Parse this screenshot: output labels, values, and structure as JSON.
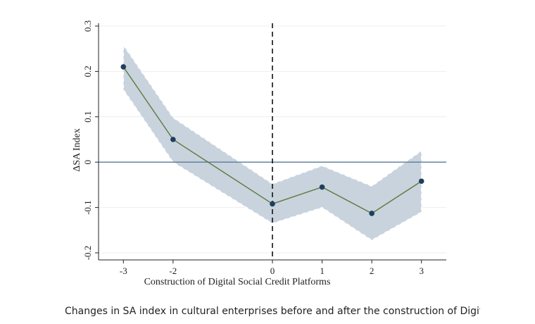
{
  "chart_data": {
    "type": "line",
    "title": "",
    "xlabel": "Construction of Digital Social Credit Platforms",
    "ylabel": "ΔSA Index",
    "x": [
      -3,
      -2,
      0,
      1,
      2,
      3
    ],
    "xticks": [
      "-3",
      "-2",
      "0",
      "1",
      "2",
      "3"
    ],
    "yticks": [
      "-0.2",
      "-0.1",
      "0",
      "0.1",
      "0.2",
      "0.3"
    ],
    "xlim": [
      -3.5,
      3.5
    ],
    "ylim": [
      -0.2,
      0.3
    ],
    "series": [
      {
        "values": [
          0.21,
          0.05,
          -0.092,
          -0.055,
          -0.113,
          -0.042
        ],
        "ci_upper": [
          0.258,
          0.098,
          -0.048,
          -0.008,
          -0.053,
          0.025
        ],
        "ci_lower": [
          0.16,
          0.0,
          -0.135,
          -0.1,
          -0.172,
          -0.11
        ]
      }
    ],
    "reference_lines": {
      "horizontal_y": 0,
      "vertical_x": 0
    },
    "grid": true,
    "legend": "none",
    "colors": {
      "line": "#5b7a3a",
      "marker": "#1e3e5c",
      "band": "#c8d3de",
      "band_edge": "#ffffff",
      "zero_line": "#5b7896"
    }
  },
  "caption": "Changes in SA index in cultural enterprises before and after the construction of Digital Social Credit Platforms"
}
